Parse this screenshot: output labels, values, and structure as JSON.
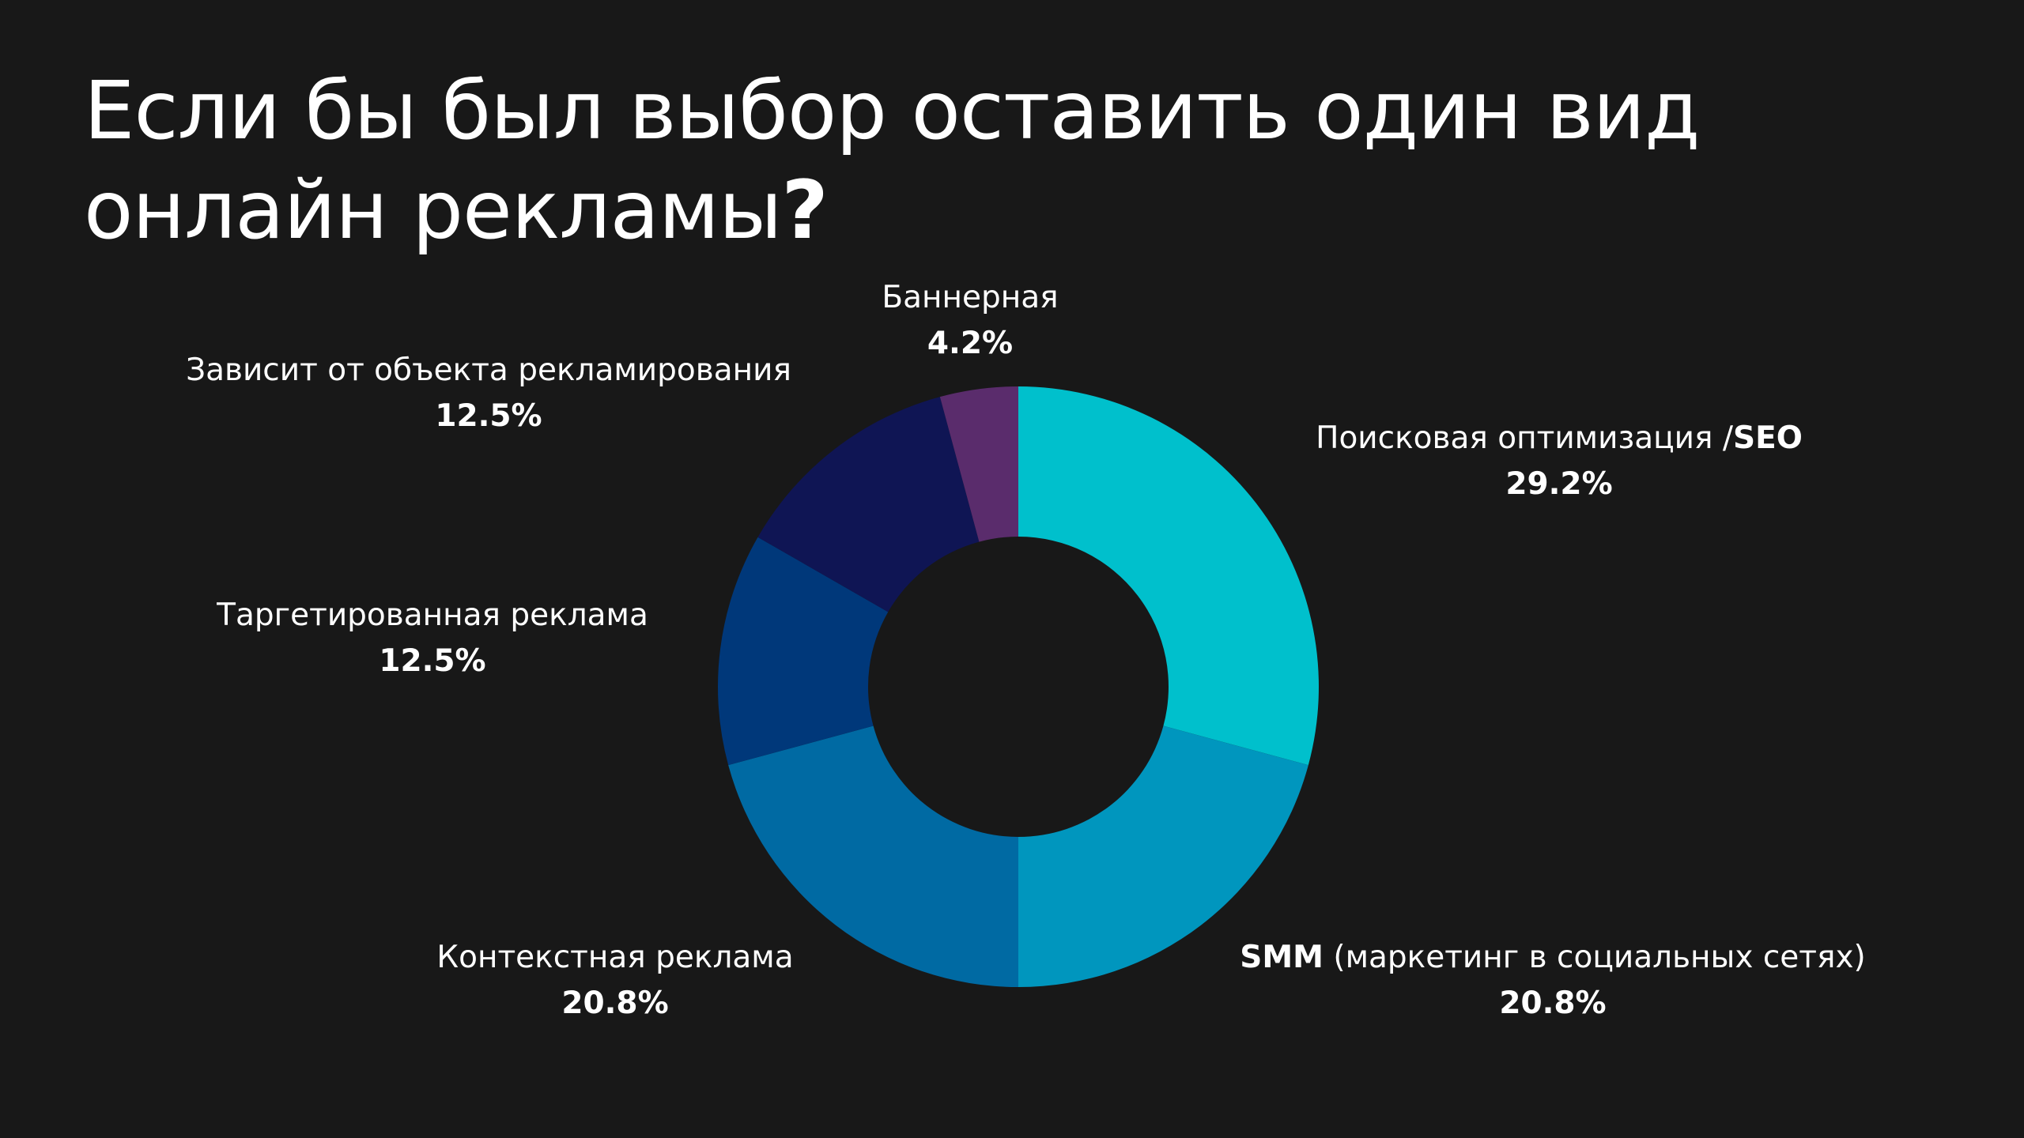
{
  "title": {
    "text": "Если бы был выбор оставить один вид онлайн рекламы",
    "punct": "?"
  },
  "chart_data": {
    "type": "pie",
    "style": "donut",
    "slices": [
      {
        "label": "Поисковая оптимизация /SEO",
        "label_plain": "Поисковая оптимизация /",
        "label_bold": "SEO",
        "value": 29.2,
        "value_label": "29.2%",
        "color": "#00C0CC"
      },
      {
        "label": "SMM (маркетинг в социальных сетях)",
        "label_bold": "SMM",
        "label_plain": " (маркетинг в социальных сетях)",
        "value": 20.8,
        "value_label": "20.8%",
        "color": "#0096BE"
      },
      {
        "label": "Контекстная реклама",
        "value": 20.8,
        "value_label": "20.8%",
        "color": "#006AA3"
      },
      {
        "label": "Таргетированная реклама",
        "value": 12.5,
        "value_label": "12.5%",
        "color": "#00387A"
      },
      {
        "label": "Зависит от объекта рекламирования",
        "value": 12.5,
        "value_label": "12.5%",
        "color": "#0F1554"
      },
      {
        "label": "Баннерная",
        "value": 4.2,
        "value_label": "4.2%",
        "color": "#5A2C6C"
      }
    ]
  }
}
